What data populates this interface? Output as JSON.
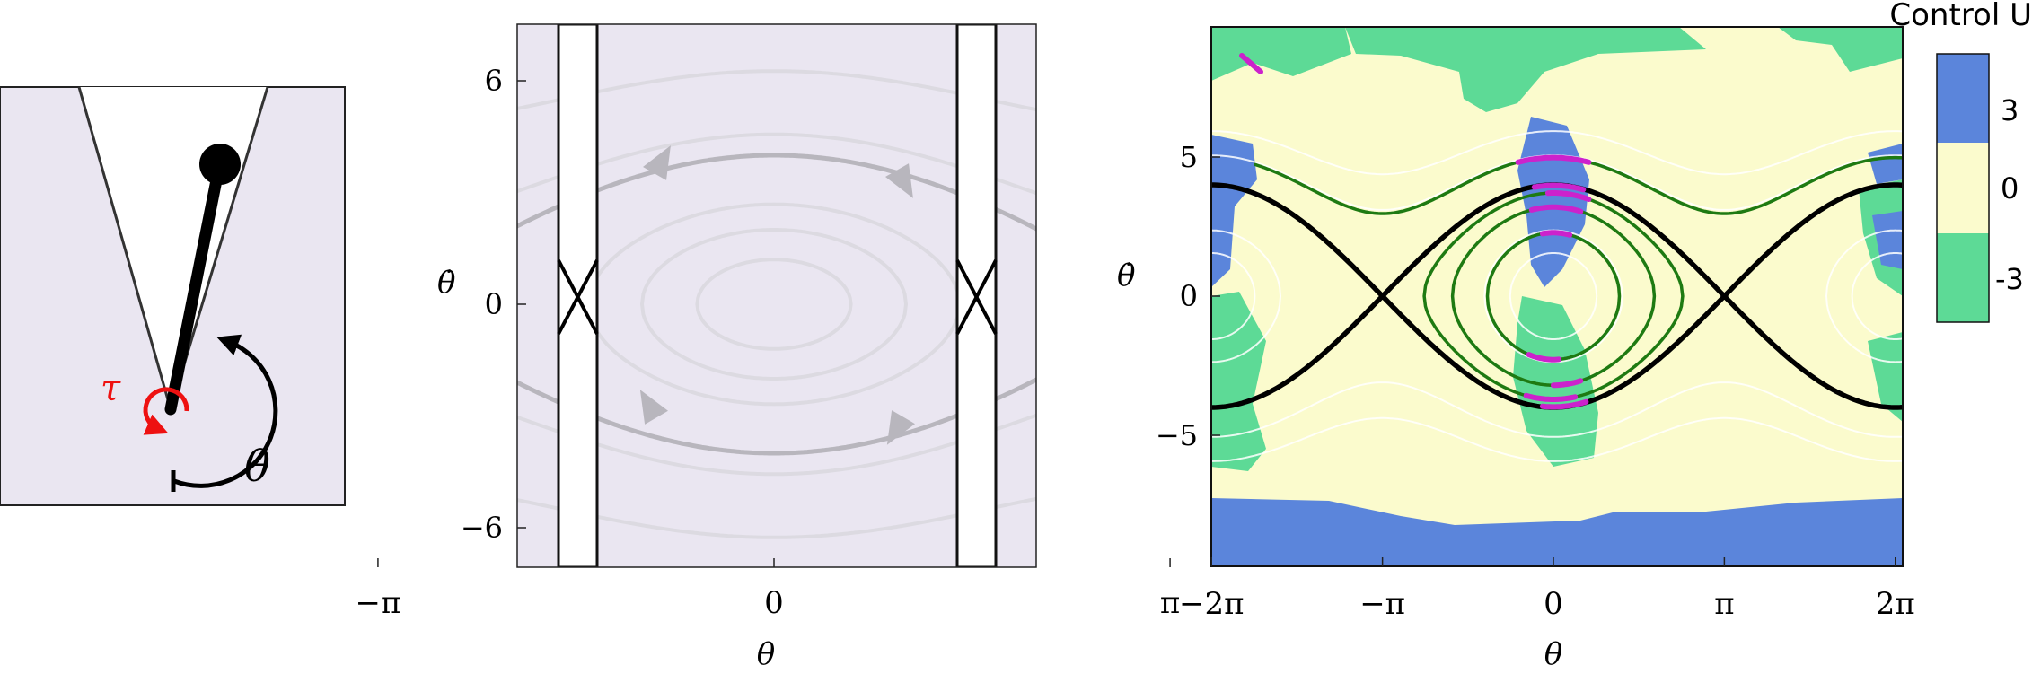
{
  "pendulum": {
    "torque_symbol": "τ",
    "angle_symbol": "θ"
  },
  "phase_plot": {
    "y_axis_label": "θ̇",
    "x_axis_label": "θ",
    "y_ticks": [
      {
        "value": 6,
        "label": "6"
      },
      {
        "value": 0,
        "label": "0"
      },
      {
        "value": -6,
        "label": "−6"
      }
    ],
    "x_ticks": [
      {
        "value": -3.14159,
        "label": "−π"
      },
      {
        "value": 0,
        "label": "0"
      },
      {
        "value": 3.14159,
        "label": "π"
      }
    ]
  },
  "control_plot": {
    "y_axis_label": "θ̇",
    "x_axis_label": "θ",
    "y_ticks": [
      {
        "value": 5,
        "label": "5"
      },
      {
        "value": 0,
        "label": "0"
      },
      {
        "value": -5,
        "label": "−5"
      }
    ],
    "x_ticks": [
      {
        "value": -6.28318,
        "label": "−2π"
      },
      {
        "value": -3.14159,
        "label": "−π"
      },
      {
        "value": 0,
        "label": "0"
      },
      {
        "value": 3.14159,
        "label": "π"
      },
      {
        "value": 6.28318,
        "label": "2π"
      }
    ]
  },
  "colorbar": {
    "title": "Control U",
    "entries": [
      {
        "label": "3",
        "color": "#5b85db"
      },
      {
        "label": "0",
        "color": "#fbfbcd"
      },
      {
        "label": "-3",
        "color": "#5dda96"
      }
    ]
  },
  "colors": {
    "panel_bg": "#eae6f1",
    "separatrix": "#000000",
    "gray_orbit": "#b8b6bd",
    "light_orbit": "#dcdae1",
    "green_orbit": "#1e7a12",
    "magenta_segment": "#cc22cc",
    "torque": "#ee1111"
  }
}
